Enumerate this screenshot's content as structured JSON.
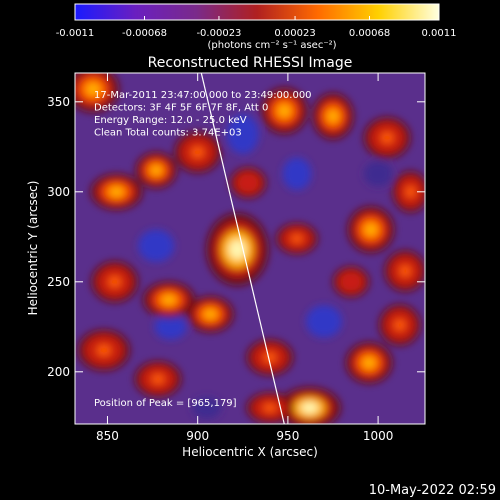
{
  "chart_data": {
    "type": "heatmap",
    "title": "Reconstructed RHESSI Image",
    "xlabel": "Heliocentric X (arcsec)",
    "ylabel": "Heliocentric Y (arcsec)",
    "xlim": [
      832,
      1026
    ],
    "ylim": [
      171,
      366
    ],
    "x_ticks": [
      "850",
      "900",
      "950",
      "1000"
    ],
    "y_ticks": [
      "200",
      "250",
      "300",
      "350"
    ],
    "x_tick_values": [
      850,
      900,
      950,
      1000
    ],
    "y_tick_values": [
      200,
      250,
      300,
      350
    ],
    "colorbar": {
      "min": -0.0011,
      "max": 0.0011,
      "tick_labels": [
        "-0.0011",
        "-0.00068",
        "-0.00023",
        "0.00023",
        "0.00068",
        "0.0011"
      ],
      "tick_values": [
        -0.0011,
        -0.00068,
        -0.00023,
        0.00023,
        0.00068,
        0.0011
      ],
      "unit_label": "(photons cm⁻² s⁻¹ asec⁻²)",
      "colors": [
        "#1a1aff",
        "#6a1fc0",
        "#7a2a8a",
        "#b02020",
        "#ff6a00",
        "#ffd000",
        "#ffffe0"
      ]
    },
    "annotations": [
      "17-Mar-2011 23:47:00.000 to 23:49:00.000",
      "Detectors: 3F 4F 5F 6F 7F 8F, Att 0",
      "Energy Range: 12.0 - 25.0 keV",
      "Clean    Total counts: 3.74E+03"
    ],
    "peak_label": "Position of Peak = [965,179]",
    "limb_line": {
      "x": [
        902,
        948
      ],
      "y": [
        366,
        171
      ],
      "color": "#ffffff"
    },
    "bright_sources": [
      {
        "x": 922,
        "y": 268,
        "rx": 12,
        "ry": 14,
        "level": 1.0
      },
      {
        "x": 962,
        "y": 180,
        "rx": 12,
        "ry": 8,
        "level": 1.0
      },
      {
        "x": 842,
        "y": 357,
        "rx": 10,
        "ry": 9,
        "level": 0.85
      },
      {
        "x": 855,
        "y": 300,
        "rx": 10,
        "ry": 7,
        "level": 0.9
      },
      {
        "x": 877,
        "y": 312,
        "rx": 8,
        "ry": 7,
        "level": 0.8
      },
      {
        "x": 900,
        "y": 322,
        "rx": 9,
        "ry": 8,
        "level": 0.75
      },
      {
        "x": 884,
        "y": 240,
        "rx": 10,
        "ry": 7,
        "level": 0.85
      },
      {
        "x": 907,
        "y": 232,
        "rx": 9,
        "ry": 7,
        "level": 0.8
      },
      {
        "x": 854,
        "y": 250,
        "rx": 9,
        "ry": 8,
        "level": 0.75
      },
      {
        "x": 948,
        "y": 345,
        "rx": 9,
        "ry": 9,
        "level": 0.85
      },
      {
        "x": 975,
        "y": 342,
        "rx": 8,
        "ry": 9,
        "level": 0.8
      },
      {
        "x": 1005,
        "y": 330,
        "rx": 9,
        "ry": 8,
        "level": 0.75
      },
      {
        "x": 996,
        "y": 279,
        "rx": 9,
        "ry": 9,
        "level": 0.8
      },
      {
        "x": 1015,
        "y": 256,
        "rx": 8,
        "ry": 8,
        "level": 0.75
      },
      {
        "x": 1018,
        "y": 300,
        "rx": 7,
        "ry": 8,
        "level": 0.7
      },
      {
        "x": 955,
        "y": 274,
        "rx": 8,
        "ry": 6,
        "level": 0.7
      },
      {
        "x": 995,
        "y": 205,
        "rx": 9,
        "ry": 8,
        "level": 0.85
      },
      {
        "x": 940,
        "y": 208,
        "rx": 9,
        "ry": 7,
        "level": 0.75
      },
      {
        "x": 878,
        "y": 196,
        "rx": 9,
        "ry": 7,
        "level": 0.75
      },
      {
        "x": 848,
        "y": 212,
        "rx": 10,
        "ry": 8,
        "level": 0.7
      },
      {
        "x": 1012,
        "y": 226,
        "rx": 8,
        "ry": 8,
        "level": 0.7
      },
      {
        "x": 940,
        "y": 180,
        "rx": 9,
        "ry": 6,
        "level": 0.65
      },
      {
        "x": 928,
        "y": 305,
        "rx": 7,
        "ry": 6,
        "level": 0.6
      },
      {
        "x": 985,
        "y": 250,
        "rx": 7,
        "ry": 6,
        "level": 0.55
      }
    ],
    "dark_regions": [
      {
        "x": 925,
        "y": 332,
        "rx": 9,
        "ry": 11,
        "level": -0.9
      },
      {
        "x": 955,
        "y": 310,
        "rx": 8,
        "ry": 9,
        "level": -0.7
      },
      {
        "x": 877,
        "y": 270,
        "rx": 10,
        "ry": 9,
        "level": -0.85
      },
      {
        "x": 885,
        "y": 225,
        "rx": 9,
        "ry": 7,
        "level": -0.7
      },
      {
        "x": 970,
        "y": 228,
        "rx": 10,
        "ry": 9,
        "level": -0.75
      },
      {
        "x": 905,
        "y": 180,
        "rx": 8,
        "ry": 6,
        "level": -0.6
      },
      {
        "x": 1000,
        "y": 310,
        "rx": 8,
        "ry": 7,
        "level": -0.55
      }
    ]
  },
  "footer": {
    "timestamp": "10-May-2022 02:59"
  }
}
